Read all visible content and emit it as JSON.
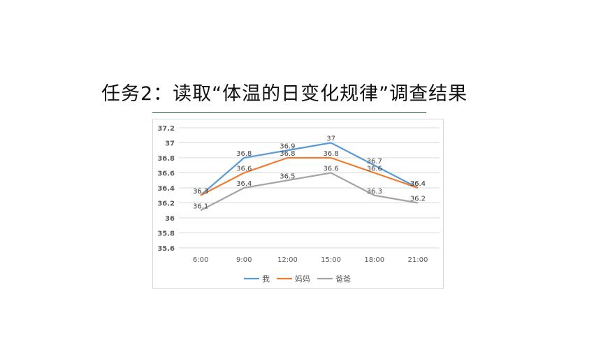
{
  "title": "任务2：读取“体温的日变化规律”调查结果",
  "chart_data": {
    "type": "line",
    "categories": [
      "6:00",
      "9:00",
      "12:00",
      "15:00",
      "18:00",
      "21:00"
    ],
    "series": [
      {
        "name": "我",
        "values": [
          36.3,
          36.8,
          36.9,
          37.0,
          36.7,
          36.4
        ],
        "color": "#5b9bd5"
      },
      {
        "name": "妈妈",
        "values": [
          36.3,
          36.6,
          36.8,
          36.8,
          36.6,
          36.4
        ],
        "color": "#ed7d31"
      },
      {
        "name": "爸爸",
        "values": [
          36.1,
          36.4,
          36.5,
          36.6,
          36.3,
          36.2
        ],
        "color": "#a5a5a5"
      }
    ],
    "data_labels": [
      [
        "36.3",
        "36.8",
        "36.9",
        "37",
        "36.7",
        "36.4"
      ],
      [
        "36.3",
        "36.6",
        "36.8",
        "36.8",
        "36.6",
        "36.4"
      ],
      [
        "36.1",
        "36.4",
        "36.5",
        "36.6",
        "36.3",
        "36.2"
      ]
    ],
    "yticks": [
      "35.6",
      "35.8",
      "36",
      "36.2",
      "36.4",
      "36.6",
      "36.8",
      "37",
      "37.2"
    ],
    "ylim": [
      35.6,
      37.2
    ],
    "grid": true,
    "legend_position": "bottom"
  }
}
